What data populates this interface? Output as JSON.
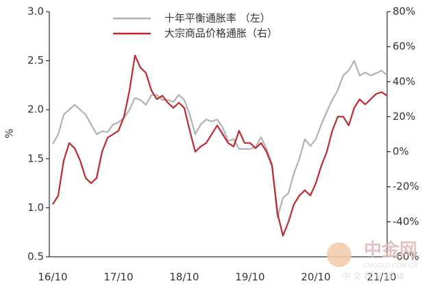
{
  "chart_data": {
    "type": "line",
    "ylabel": "%",
    "categories": [
      "16/10",
      null,
      null,
      null,
      null,
      null,
      null,
      null,
      null,
      null,
      null,
      null,
      "17/10",
      null,
      null,
      null,
      null,
      null,
      null,
      null,
      null,
      null,
      null,
      null,
      "18/10",
      null,
      null,
      null,
      null,
      null,
      null,
      null,
      null,
      null,
      null,
      null,
      "19/10",
      null,
      null,
      null,
      null,
      null,
      null,
      null,
      null,
      null,
      null,
      null,
      "20/10",
      null,
      null,
      null,
      null,
      null,
      null,
      null,
      null,
      null,
      null,
      null,
      "21/10",
      null
    ],
    "series": [
      {
        "name": "十年平衡通胀率 （左）",
        "color": "#b0b0b0",
        "axis": "y",
        "values": [
          1.65,
          1.75,
          1.95,
          2.0,
          2.05,
          2.0,
          1.95,
          1.85,
          1.75,
          1.78,
          1.77,
          1.85,
          1.87,
          1.92,
          2.0,
          2.12,
          2.1,
          2.05,
          2.15,
          2.15,
          2.1,
          2.1,
          2.08,
          2.15,
          2.1,
          1.95,
          1.75,
          1.85,
          1.9,
          1.88,
          1.9,
          1.82,
          1.68,
          1.7,
          1.6,
          1.6,
          1.6,
          1.62,
          1.72,
          1.6,
          1.45,
          0.9,
          1.1,
          1.15,
          1.35,
          1.5,
          1.7,
          1.63,
          1.7,
          1.85,
          1.98,
          2.1,
          2.2,
          2.35,
          2.4,
          2.5,
          2.35,
          2.38,
          2.35,
          2.37,
          2.4,
          2.35
        ]
      },
      {
        "name": "大宗商品价格通胀（右）",
        "color": "#c0272d",
        "axis": "y2",
        "values": [
          -30,
          -25,
          -5,
          5,
          2,
          -5,
          -15,
          -18,
          -15,
          0,
          8,
          10,
          12,
          20,
          35,
          55,
          48,
          45,
          35,
          30,
          32,
          28,
          25,
          28,
          25,
          12,
          0,
          3,
          5,
          10,
          15,
          10,
          5,
          3,
          12,
          5,
          5,
          2,
          5,
          0,
          -8,
          -35,
          -48,
          -40,
          -30,
          -25,
          -22,
          -25,
          -18,
          -8,
          0,
          12,
          20,
          20,
          15,
          25,
          30,
          27,
          30,
          33,
          34,
          32
        ]
      }
    ],
    "ylim": [
      0.5,
      3.0
    ],
    "yticks": [
      {
        "value": 0.5,
        "label": "0.5"
      },
      {
        "value": 1.0,
        "label": "1.0"
      },
      {
        "value": 1.5,
        "label": "1.5"
      },
      {
        "value": 2.0,
        "label": "2.0"
      },
      {
        "value": 2.5,
        "label": "2.5"
      },
      {
        "value": 3.0,
        "label": "3.0"
      }
    ],
    "y2lim": [
      -60,
      80
    ],
    "y2ticks": [
      {
        "value": -60,
        "label": "-60%"
      },
      {
        "value": -40,
        "label": "-40%"
      },
      {
        "value": -20,
        "label": "-20%"
      },
      {
        "value": 0,
        "label": "0%"
      },
      {
        "value": 20,
        "label": "20%"
      },
      {
        "value": 40,
        "label": "40%"
      },
      {
        "value": 60,
        "label": "60%"
      },
      {
        "value": 80,
        "label": "80%"
      }
    ],
    "legend": "top",
    "watermark": {
      "logo": "中金网",
      "site": "CNGOLD.COM.CN",
      "slogan": "中 文 财 经 媒 体"
    }
  }
}
